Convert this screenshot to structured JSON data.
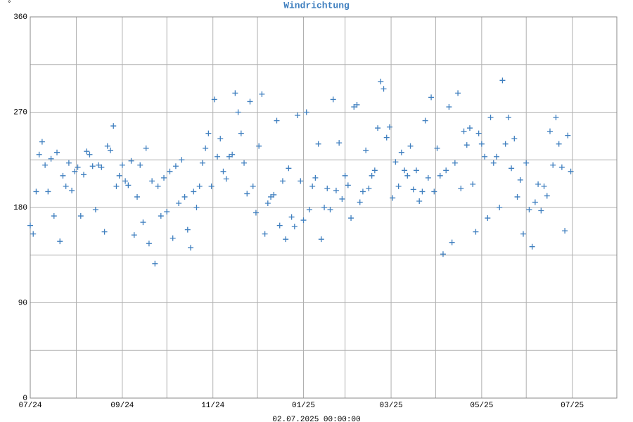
{
  "chart_data": {
    "type": "scatter",
    "title": "Windrichtung",
    "y_label": "°",
    "footer": "02.07.2025 00:00:00",
    "color": "#3f7fbf",
    "grid": true,
    "xlim": [
      0,
      395
    ],
    "ylim": [
      0,
      360
    ],
    "xticks": [
      {
        "value": 0,
        "label": "07/24"
      },
      {
        "value": 62,
        "label": "09/24"
      },
      {
        "value": 123,
        "label": "11/24"
      },
      {
        "value": 184,
        "label": "01/25"
      },
      {
        "value": 243,
        "label": "03/25"
      },
      {
        "value": 304,
        "label": "05/25"
      },
      {
        "value": 365,
        "label": "07/25"
      }
    ],
    "xminor": [
      31,
      92,
      153,
      212,
      273,
      334
    ],
    "yticks": [
      0,
      90,
      180,
      270,
      360
    ],
    "yminor": [
      45,
      135,
      225,
      315
    ],
    "series": [
      {
        "name": "Windrichtung",
        "x": [
          0,
          2,
          4,
          6,
          8,
          10,
          12,
          14,
          16,
          18,
          20,
          22,
          24,
          26,
          28,
          30,
          32,
          34,
          36,
          38,
          40,
          42,
          44,
          46,
          48,
          50,
          52,
          54,
          56,
          58,
          60,
          62,
          64,
          66,
          68,
          70,
          72,
          74,
          76,
          78,
          80,
          82,
          84,
          86,
          88,
          90,
          92,
          94,
          96,
          98,
          100,
          102,
          104,
          106,
          108,
          110,
          112,
          114,
          116,
          118,
          120,
          122,
          124,
          126,
          128,
          130,
          132,
          134,
          136,
          138,
          140,
          142,
          144,
          146,
          148,
          150,
          152,
          154,
          156,
          158,
          160,
          162,
          164,
          166,
          168,
          170,
          172,
          174,
          176,
          178,
          180,
          182,
          184,
          186,
          188,
          190,
          192,
          194,
          196,
          198,
          200,
          202,
          204,
          206,
          208,
          210,
          212,
          214,
          216,
          218,
          220,
          222,
          224,
          226,
          228,
          230,
          232,
          234,
          236,
          238,
          240,
          242,
          244,
          246,
          248,
          250,
          252,
          254,
          256,
          258,
          260,
          262,
          264,
          266,
          268,
          270,
          272,
          274,
          276,
          278,
          280,
          282,
          284,
          286,
          288,
          290,
          292,
          294,
          296,
          298,
          300,
          302,
          304,
          306,
          308,
          310,
          312,
          314,
          316,
          318,
          320,
          322,
          324,
          326,
          328,
          330,
          332,
          334,
          336,
          338,
          340,
          342,
          344,
          346,
          348,
          350,
          352,
          354,
          356,
          358,
          360,
          362,
          364
        ],
        "values": [
          163,
          155,
          195,
          230,
          242,
          220,
          195,
          226,
          172,
          232,
          148,
          210,
          200,
          222,
          196,
          214,
          218,
          172,
          211,
          233,
          230,
          219,
          178,
          220,
          218,
          157,
          238,
          234,
          257,
          200,
          210,
          220,
          205,
          201,
          224,
          154,
          190,
          220,
          166,
          236,
          146,
          205,
          127,
          200,
          172,
          208,
          176,
          214,
          151,
          219,
          184,
          225,
          190,
          159,
          142,
          195,
          180,
          200,
          222,
          236,
          250,
          200,
          282,
          228,
          245,
          214,
          207,
          228,
          230,
          288,
          270,
          250,
          222,
          193,
          280,
          200,
          175,
          238,
          287,
          155,
          184,
          190,
          192,
          262,
          163,
          205,
          150,
          217,
          171,
          162,
          267,
          205,
          168,
          270,
          178,
          200,
          208,
          240,
          150,
          180,
          198,
          178,
          282,
          196,
          241,
          188,
          210,
          201,
          170,
          275,
          277,
          185,
          195,
          234,
          198,
          210,
          215,
          255,
          299,
          292,
          246,
          256,
          189,
          223,
          200,
          232,
          215,
          210,
          238,
          197,
          215,
          186,
          195,
          262,
          208,
          284,
          195,
          236,
          210,
          136,
          215,
          275,
          147,
          222,
          288,
          198,
          252,
          239,
          255,
          202,
          157,
          250,
          240,
          228,
          170,
          265,
          222,
          228,
          180,
          300,
          240,
          265,
          217,
          245,
          190,
          206,
          155,
          222,
          178,
          143,
          185,
          202,
          177,
          200,
          191,
          252,
          220,
          265,
          240,
          218,
          158,
          248,
          214
        ]
      }
    ]
  }
}
